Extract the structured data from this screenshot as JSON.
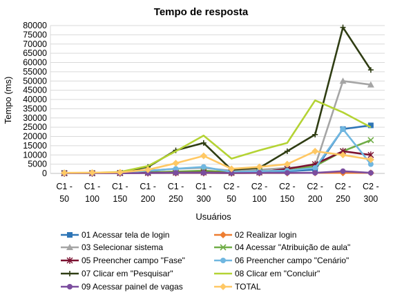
{
  "chart_data": {
    "type": "line",
    "title": "Tempo de resposta",
    "xlabel": "Usuários",
    "ylabel": "Tempo (ms)",
    "ylim": [
      0,
      80000
    ],
    "yticks": [
      0,
      5000,
      10000,
      15000,
      20000,
      25000,
      30000,
      35000,
      40000,
      45000,
      50000,
      55000,
      60000,
      65000,
      70000,
      75000,
      80000
    ],
    "grid": true,
    "legend_position": "bottom",
    "categories": [
      [
        "C1 -",
        "50"
      ],
      [
        "C1 -",
        "100"
      ],
      [
        "C1 -",
        "150"
      ],
      [
        "C1 -",
        "200"
      ],
      [
        "C1 -",
        "250"
      ],
      [
        "C1 -",
        "300"
      ],
      [
        "C2 -",
        "50"
      ],
      [
        "C2 -",
        "100"
      ],
      [
        "C2 -",
        "150"
      ],
      [
        "C2 -",
        "200"
      ],
      [
        "C2 -",
        "250"
      ],
      [
        "C2 -",
        "300"
      ]
    ],
    "series": [
      {
        "name": "01 Acessar tela de login",
        "color": "#2E75B6",
        "marker": "square",
        "values": [
          200,
          200,
          300,
          800,
          800,
          1000,
          500,
          800,
          1200,
          2000,
          24000,
          26000
        ]
      },
      {
        "name": "02 Realizar login",
        "color": "#ED7D31",
        "marker": "diamond",
        "values": [
          100,
          100,
          100,
          200,
          200,
          200,
          100,
          200,
          200,
          300,
          300,
          300
        ]
      },
      {
        "name": "03 Selecionar sistema",
        "color": "#A5A5A5",
        "marker": "triangle",
        "values": [
          200,
          200,
          300,
          1500,
          2500,
          3000,
          1500,
          2000,
          3000,
          4000,
          50000,
          48000
        ]
      },
      {
        "name": "04 Acessar \"Atribuição de aula\"",
        "color": "#70AD47",
        "marker": "x",
        "values": [
          100,
          100,
          200,
          500,
          1000,
          1500,
          800,
          1200,
          1500,
          4000,
          12000,
          18000
        ]
      },
      {
        "name": "05 Preencher campo \"Fase\"",
        "color": "#7B1130",
        "marker": "star",
        "values": [
          100,
          100,
          200,
          300,
          400,
          500,
          300,
          500,
          2500,
          5000,
          12000,
          10000
        ]
      },
      {
        "name": "06 Preencher campo \"Cenário\"",
        "color": "#70B7E0",
        "marker": "circle",
        "values": [
          100,
          100,
          200,
          1500,
          2500,
          3500,
          800,
          1200,
          1500,
          3000,
          24000,
          5000
        ]
      },
      {
        "name": "07 Clicar em \"Pesquisar\"",
        "color": "#2F3D13",
        "marker": "plus",
        "values": [
          200,
          300,
          500,
          3500,
          12500,
          16500,
          2000,
          3000,
          12000,
          21000,
          79000,
          56000
        ]
      },
      {
        "name": "08 Clicar em \"Concluir\"",
        "color": "#B4D334",
        "marker": "none",
        "values": [
          200,
          300,
          800,
          4000,
          12000,
          20500,
          8000,
          12500,
          16500,
          39500,
          33000,
          25000
        ]
      },
      {
        "name": "09 Acessar painel de vagas",
        "color": "#7B4D9E",
        "marker": "circle",
        "values": [
          100,
          100,
          100,
          200,
          300,
          300,
          200,
          300,
          300,
          300,
          1200,
          300
        ]
      },
      {
        "name": "TOTAL",
        "color": "#FFC864",
        "marker": "diamond",
        "values": [
          300,
          400,
          600,
          2000,
          5500,
          9500,
          2500,
          3500,
          5000,
          12000,
          10000,
          7500
        ]
      }
    ]
  }
}
